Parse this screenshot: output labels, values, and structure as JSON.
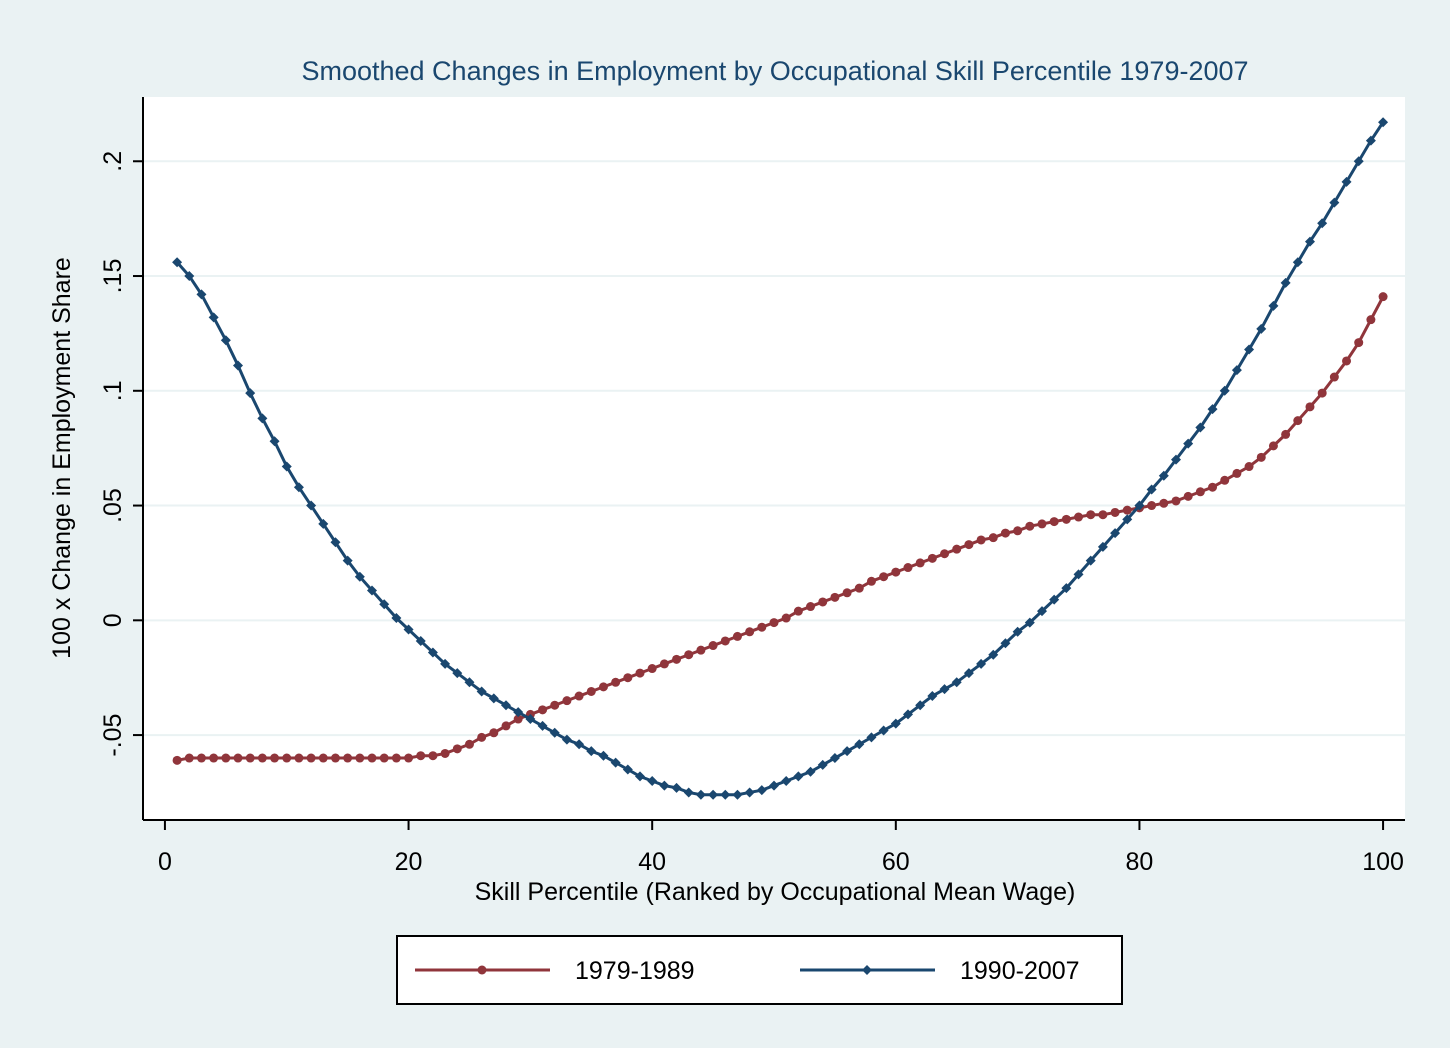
{
  "chart_data": {
    "type": "line",
    "title": "Smoothed Changes in Employment by Occupational Skill Percentile 1979-2007",
    "x_label": "Skill Percentile (Ranked by Occupational Mean Wage)",
    "y_label": "100 x Change in Employment Share",
    "x": [
      1,
      2,
      3,
      4,
      5,
      6,
      7,
      8,
      9,
      10,
      11,
      12,
      13,
      14,
      15,
      16,
      17,
      18,
      19,
      20,
      21,
      22,
      23,
      24,
      25,
      26,
      27,
      28,
      29,
      30,
      31,
      32,
      33,
      34,
      35,
      36,
      37,
      38,
      39,
      40,
      41,
      42,
      43,
      44,
      45,
      46,
      47,
      48,
      49,
      50,
      51,
      52,
      53,
      54,
      55,
      56,
      57,
      58,
      59,
      60,
      61,
      62,
      63,
      64,
      65,
      66,
      67,
      68,
      69,
      70,
      71,
      72,
      73,
      74,
      75,
      76,
      77,
      78,
      79,
      80,
      81,
      82,
      83,
      84,
      85,
      86,
      87,
      88,
      89,
      90,
      91,
      92,
      93,
      94,
      95,
      96,
      97,
      98,
      99,
      100
    ],
    "series": [
      {
        "name": "1979-1989",
        "color": "#90353b",
        "marker": "circle",
        "values": [
          -0.061,
          -0.06,
          -0.06,
          -0.06,
          -0.06,
          -0.06,
          -0.06,
          -0.06,
          -0.06,
          -0.06,
          -0.06,
          -0.06,
          -0.06,
          -0.06,
          -0.06,
          -0.06,
          -0.06,
          -0.06,
          -0.06,
          -0.06,
          -0.059,
          -0.059,
          -0.058,
          -0.056,
          -0.054,
          -0.051,
          -0.049,
          -0.046,
          -0.043,
          -0.041,
          -0.039,
          -0.037,
          -0.035,
          -0.033,
          -0.031,
          -0.029,
          -0.027,
          -0.025,
          -0.023,
          -0.021,
          -0.019,
          -0.017,
          -0.015,
          -0.013,
          -0.011,
          -0.009,
          -0.007,
          -0.005,
          -0.003,
          -0.001,
          0.001,
          0.004,
          0.006,
          0.008,
          0.01,
          0.012,
          0.014,
          0.017,
          0.019,
          0.021,
          0.023,
          0.025,
          0.027,
          0.029,
          0.031,
          0.033,
          0.035,
          0.036,
          0.038,
          0.039,
          0.041,
          0.042,
          0.043,
          0.044,
          0.045,
          0.046,
          0.046,
          0.047,
          0.048,
          0.049,
          0.05,
          0.051,
          0.052,
          0.054,
          0.056,
          0.058,
          0.061,
          0.064,
          0.067,
          0.071,
          0.076,
          0.081,
          0.087,
          0.093,
          0.099,
          0.106,
          0.113,
          0.121,
          0.131,
          0.141
        ]
      },
      {
        "name": "1990-2007",
        "color": "#1a476f",
        "marker": "diamond",
        "values": [
          0.156,
          0.15,
          0.142,
          0.132,
          0.122,
          0.111,
          0.099,
          0.088,
          0.078,
          0.067,
          0.058,
          0.05,
          0.042,
          0.034,
          0.026,
          0.019,
          0.013,
          0.007,
          0.001,
          -0.004,
          -0.009,
          -0.014,
          -0.019,
          -0.023,
          -0.027,
          -0.031,
          -0.034,
          -0.037,
          -0.04,
          -0.043,
          -0.046,
          -0.049,
          -0.052,
          -0.054,
          -0.057,
          -0.059,
          -0.062,
          -0.065,
          -0.068,
          -0.07,
          -0.072,
          -0.073,
          -0.075,
          -0.076,
          -0.076,
          -0.076,
          -0.076,
          -0.075,
          -0.074,
          -0.072,
          -0.07,
          -0.068,
          -0.066,
          -0.063,
          -0.06,
          -0.057,
          -0.054,
          -0.051,
          -0.048,
          -0.045,
          -0.041,
          -0.037,
          -0.033,
          -0.03,
          -0.027,
          -0.023,
          -0.019,
          -0.015,
          -0.01,
          -0.005,
          -0.001,
          0.004,
          0.009,
          0.014,
          0.02,
          0.026,
          0.032,
          0.038,
          0.044,
          0.05,
          0.057,
          0.063,
          0.07,
          0.077,
          0.084,
          0.092,
          0.1,
          0.109,
          0.118,
          0.127,
          0.137,
          0.147,
          0.156,
          0.165,
          0.173,
          0.182,
          0.191,
          0.2,
          0.209,
          0.217
        ]
      }
    ],
    "xlim": [
      -1.8,
      101.8
    ],
    "ylim": [
      -0.087,
      0.228
    ],
    "xticks": [
      0,
      20,
      40,
      60,
      80,
      100
    ],
    "yticks": [
      {
        "value": -0.05,
        "label": "-.05"
      },
      0,
      {
        "value": 0.05,
        "label": ".05"
      },
      {
        "value": 0.1,
        "label": ".1"
      },
      {
        "value": 0.15,
        "label": ".15"
      },
      {
        "value": 0.2,
        "label": ".2"
      }
    ],
    "grid": true,
    "legend": "bottom"
  }
}
